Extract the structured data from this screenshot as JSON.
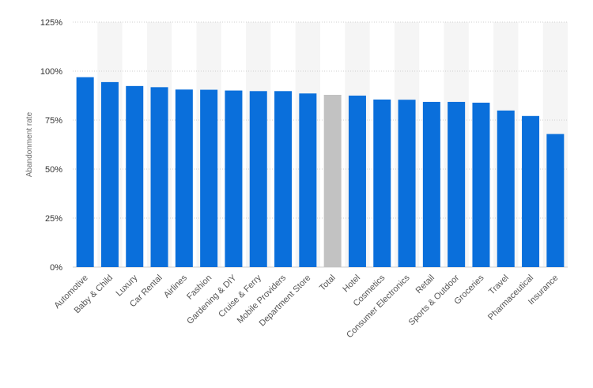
{
  "chart_data": {
    "type": "bar",
    "title": "",
    "ylabel": "Abandonment rate",
    "xlabel": "",
    "ylim": [
      0,
      125
    ],
    "yticks": [
      0,
      25,
      50,
      75,
      100,
      125
    ],
    "ytick_labels": [
      "0%",
      "25%",
      "50%",
      "75%",
      "100%",
      "125%"
    ],
    "grid": true,
    "gridlines_dotted": true,
    "alternating_column_background": true,
    "categories": [
      "Automotive",
      "Baby & Child",
      "Luxury",
      "Car Rental",
      "Airlines",
      "Fashion",
      "Gardening & DIY",
      "Cruise & Ferry",
      "Mobile Providers",
      "Department Store",
      "Total",
      "Hotel",
      "Cosmetics",
      "Consumer Electronics",
      "Retail",
      "Sports & Outdoor",
      "Groceries",
      "Travel",
      "Pharmaceutical",
      "Insurance"
    ],
    "values": [
      96.9,
      94.4,
      92.4,
      91.8,
      90.6,
      90.5,
      90.1,
      89.8,
      89.8,
      88.6,
      87.9,
      87.5,
      85.5,
      85.4,
      84.3,
      84.3,
      83.9,
      79.9,
      77.1,
      67.9
    ],
    "colors": {
      "bar": "#0a6fdb",
      "highlight_bar": "#c2c2c2",
      "stripe": "#f5f5f5",
      "grid": "#cfcfcf",
      "axis_text": "#555555",
      "axis_label": "#6b6b6b"
    },
    "highlight_category": "Total"
  }
}
